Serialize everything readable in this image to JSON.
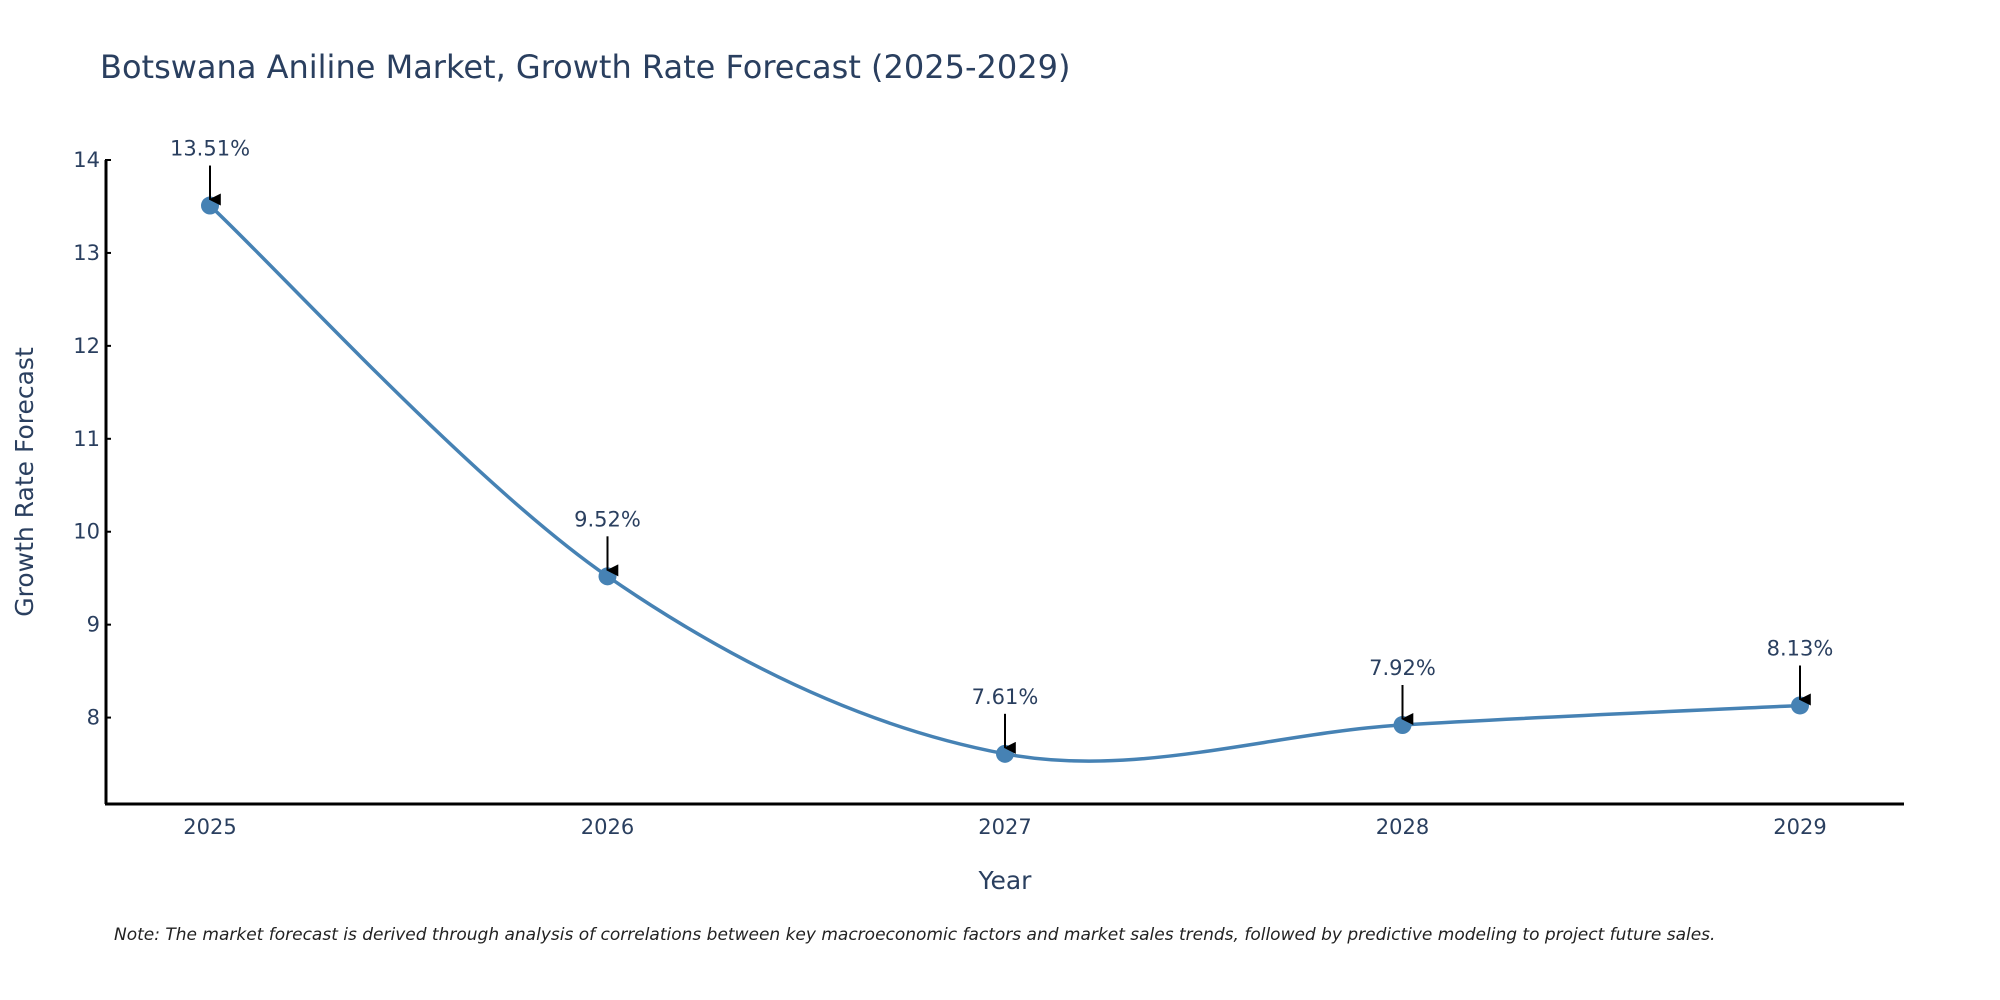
{
  "chart_data": {
    "type": "line",
    "title": "Botswana Aniline Market, Growth Rate Forecast (2025-2029)",
    "xlabel": "Year",
    "ylabel": "Growth Rate Forecast",
    "categories": [
      "2025",
      "2026",
      "2027",
      "2028",
      "2029"
    ],
    "values": [
      13.51,
      9.52,
      7.61,
      7.92,
      8.13
    ],
    "data_labels": [
      "13.51%",
      "9.52%",
      "7.61%",
      "7.92%",
      "8.13%"
    ],
    "y_ticks": [
      8,
      9,
      10,
      11,
      12,
      13,
      14
    ],
    "ylim": [
      7.07,
      14.0
    ],
    "line_shape": "spline",
    "grid": false,
    "series_color": "#4682b4",
    "arrow_color": "#000000",
    "note": "Note: The market forecast is derived through analysis of correlations between key macroeconomic factors and market sales trends, followed by predictive modeling to project future sales."
  }
}
